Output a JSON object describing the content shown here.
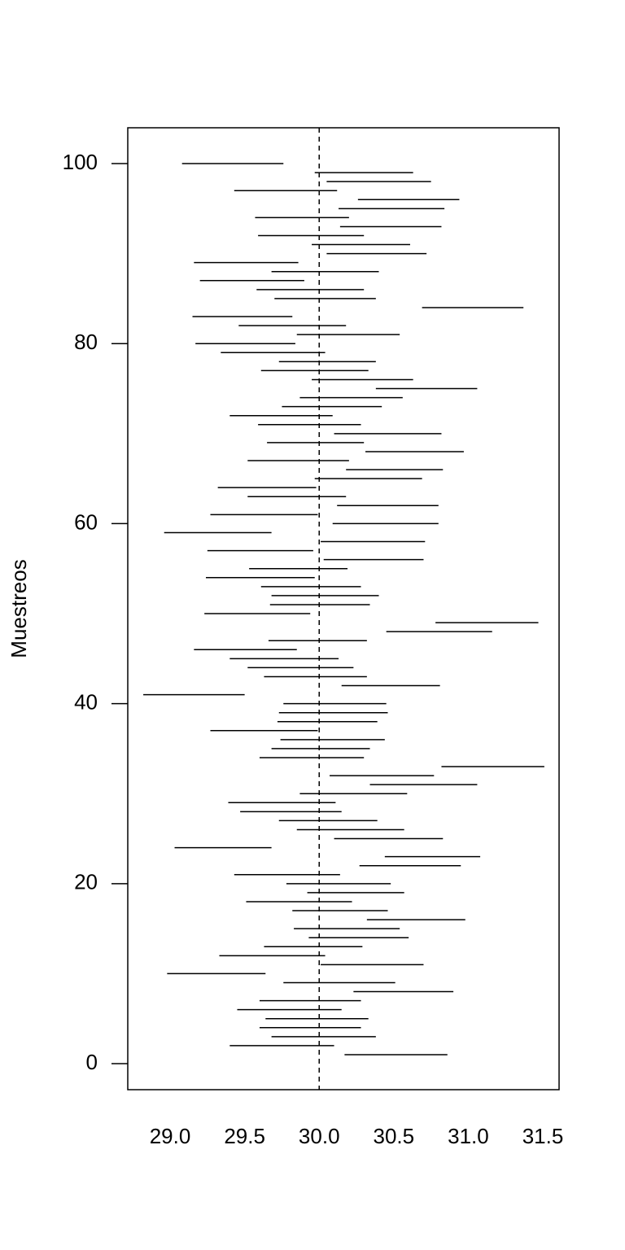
{
  "chart_data": {
    "type": "interval",
    "ylabel": "Muestreos",
    "y": [
      1,
      2,
      3,
      4,
      5,
      6,
      7,
      8,
      9,
      10,
      11,
      12,
      13,
      14,
      15,
      16,
      17,
      18,
      19,
      20,
      21,
      22,
      23,
      24,
      25,
      26,
      27,
      28,
      29,
      30,
      31,
      32,
      33,
      34,
      35,
      36,
      37,
      38,
      39,
      40,
      41,
      42,
      43,
      44,
      45,
      46,
      47,
      48,
      49,
      50,
      51,
      52,
      53,
      54,
      55,
      56,
      57,
      58,
      59,
      60,
      61,
      62,
      63,
      64,
      65,
      66,
      67,
      68,
      69,
      70,
      71,
      72,
      73,
      74,
      75,
      76,
      77,
      78,
      79,
      80,
      81,
      82,
      83,
      84,
      85,
      86,
      87,
      88,
      89,
      90,
      91,
      92,
      93,
      94,
      95,
      96,
      97,
      98,
      99,
      100
    ],
    "lower": [
      30.17,
      29.4,
      29.68,
      29.6,
      29.64,
      29.45,
      29.6,
      30.23,
      29.76,
      28.98,
      30.01,
      29.33,
      29.63,
      29.93,
      29.83,
      30.32,
      29.82,
      29.51,
      29.92,
      29.78,
      29.43,
      30.27,
      30.44,
      29.03,
      30.1,
      29.85,
      29.73,
      29.47,
      29.39,
      29.87,
      30.34,
      30.07,
      30.82,
      29.6,
      29.68,
      29.74,
      29.27,
      29.72,
      29.73,
      29.76,
      28.82,
      30.15,
      29.63,
      29.52,
      29.4,
      29.16,
      29.66,
      30.45,
      30.78,
      29.23,
      29.67,
      29.68,
      29.61,
      29.24,
      29.53,
      30.03,
      29.25,
      30.01,
      28.96,
      30.09,
      29.27,
      30.12,
      29.52,
      29.32,
      29.97,
      30.18,
      29.52,
      30.31,
      29.65,
      30.1,
      29.59,
      29.4,
      29.75,
      29.87,
      30.38,
      29.95,
      29.61,
      29.73,
      29.34,
      29.17,
      29.85,
      29.46,
      29.15,
      30.69,
      29.7,
      29.58,
      29.2,
      29.68,
      29.16,
      30.05,
      29.95,
      29.59,
      30.14,
      29.57,
      30.13,
      30.26,
      29.43,
      30.05,
      29.97,
      29.08
    ],
    "upper": [
      30.86,
      30.1,
      30.38,
      30.28,
      30.33,
      30.15,
      30.28,
      30.9,
      30.51,
      29.64,
      30.7,
      30.04,
      30.29,
      30.6,
      30.54,
      30.98,
      30.46,
      30.22,
      30.57,
      30.48,
      30.14,
      30.95,
      31.08,
      29.68,
      30.83,
      30.57,
      30.39,
      30.15,
      30.11,
      30.59,
      31.06,
      30.77,
      31.51,
      30.3,
      30.34,
      30.44,
      29.99,
      30.39,
      30.46,
      30.45,
      29.5,
      30.81,
      30.32,
      30.23,
      30.13,
      29.85,
      30.32,
      31.16,
      31.47,
      29.94,
      30.34,
      30.4,
      30.28,
      29.97,
      30.19,
      30.7,
      29.96,
      30.71,
      29.68,
      30.8,
      29.99,
      30.8,
      30.18,
      29.98,
      30.69,
      30.83,
      30.2,
      30.97,
      30.3,
      30.82,
      30.28,
      30.09,
      30.42,
      30.56,
      31.06,
      30.63,
      30.33,
      30.38,
      30.04,
      29.84,
      30.54,
      30.18,
      29.82,
      31.37,
      30.38,
      30.3,
      29.9,
      30.4,
      29.86,
      30.72,
      30.61,
      30.3,
      30.82,
      30.2,
      30.84,
      30.94,
      30.12,
      30.75,
      30.63,
      29.76
    ],
    "ref_line": 30,
    "xlim": [
      28.716,
      31.609
    ],
    "ylim": [
      -2.89,
      103.98
    ],
    "xticks": [
      {
        "value": 29,
        "label": "29.0"
      },
      {
        "value": 29.5,
        "label": "29.5"
      },
      {
        "value": 30,
        "label": "30.0"
      },
      {
        "value": 30.5,
        "label": "30.5"
      },
      {
        "value": 31,
        "label": "31.0"
      },
      {
        "value": 31.5,
        "label": "31.5"
      }
    ],
    "yticks": [
      0,
      20,
      40,
      60,
      80,
      100
    ],
    "color": "#000000"
  }
}
